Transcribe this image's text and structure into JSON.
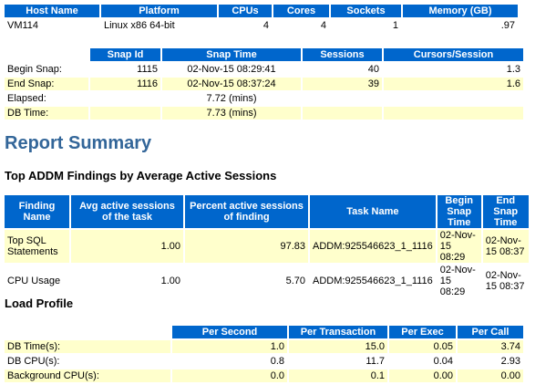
{
  "host_table": {
    "headers": [
      "Host Name",
      "Platform",
      "CPUs",
      "Cores",
      "Sockets",
      "Memory (GB)"
    ],
    "rows": [
      [
        "VM114",
        "Linux x86 64-bit",
        "4",
        "4",
        "1",
        ".97"
      ]
    ]
  },
  "snap_table": {
    "headers": [
      "Snap Id",
      "Snap Time",
      "Sessions",
      "Cursors/Session"
    ],
    "rows": [
      [
        "Begin Snap:",
        "1115",
        "02-Nov-15 08:29:41",
        "40",
        "1.3"
      ],
      [
        "End Snap:",
        "1116",
        "02-Nov-15 08:37:24",
        "39",
        "1.6"
      ],
      [
        "Elapsed:",
        null,
        "7.72 (mins)",
        null,
        null
      ],
      [
        "DB Time:",
        null,
        "7.73 (mins)",
        null,
        null
      ]
    ]
  },
  "report_summary": {
    "title": "Report Summary",
    "addm_title": "Top ADDM Findings by Average Active Sessions"
  },
  "addm_table": {
    "headers": [
      "Finding Name",
      "Avg active sessions of the task",
      "Percent active sessions of finding",
      "Task Name",
      "Begin Snap Time",
      "End Snap Time"
    ],
    "rows": [
      [
        "Top SQL Statements",
        "1.00",
        "97.83",
        "ADDM:925546623_1_1116",
        "02-Nov-15 08:29",
        "02-Nov-15 08:37"
      ],
      [
        "CPU Usage",
        "1.00",
        "5.70",
        "ADDM:925546623_1_1116",
        "02-Nov-15 08:29",
        "02-Nov-15 08:37"
      ]
    ]
  },
  "load_profile": {
    "title": "Load Profile",
    "headers": [
      "Per Second",
      "Per Transaction",
      "Per Exec",
      "Per Call"
    ],
    "rows": [
      [
        "DB Time(s):",
        "1.0",
        "15.0",
        "0.05",
        "3.74"
      ],
      [
        "DB CPU(s):",
        "0.8",
        "11.7",
        "0.04",
        "2.93"
      ],
      [
        "Background CPU(s):",
        "0.0",
        "0.1",
        "0.00",
        "0.00"
      ]
    ]
  }
}
